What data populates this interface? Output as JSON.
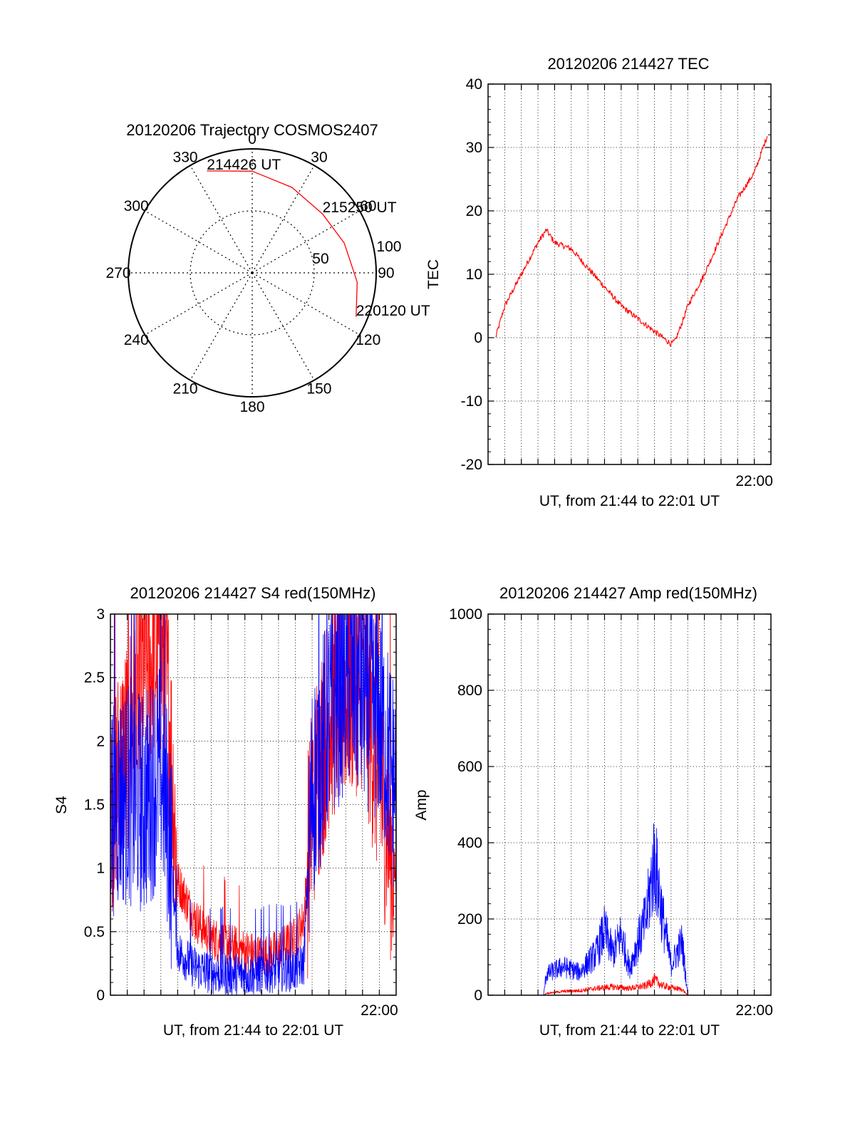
{
  "chart_data": [
    {
      "type": "polar",
      "title": "20120206 Trajectory COSMOS2407",
      "angle_labels": [
        "0",
        "30",
        "60",
        "90",
        "120",
        "150",
        "180",
        "210",
        "240",
        "270",
        "300",
        "330"
      ],
      "angle_values": [
        0,
        30,
        60,
        90,
        120,
        150,
        180,
        210,
        240,
        270,
        300,
        330
      ],
      "radius_labels": [
        "50",
        "100"
      ],
      "radius_values": [
        50,
        100
      ],
      "trajectory": {
        "color": "#ff0000",
        "points": [
          {
            "azimuth": 336,
            "radius": 90
          },
          {
            "azimuth": 0,
            "radius": 82
          },
          {
            "azimuth": 25,
            "radius": 76
          },
          {
            "azimuth": 50,
            "radius": 74
          },
          {
            "azimuth": 72,
            "radius": 78
          },
          {
            "azimuth": 95,
            "radius": 85
          },
          {
            "azimuth": 113,
            "radius": 91
          }
        ]
      },
      "annotations": [
        {
          "text": "214426 UT",
          "azimuth": 336,
          "radius": 90
        },
        {
          "text": "215250 UT",
          "azimuth": 50,
          "radius": 74
        },
        {
          "text": "220120 UT",
          "azimuth": 113,
          "radius": 91
        }
      ]
    },
    {
      "type": "line",
      "title": "20120206 214427 TEC",
      "ylabel": "TEC",
      "xlabel": "UT, from 21:44 to 22:01 UT",
      "xlim": [
        "21:44:00",
        "22:01:00"
      ],
      "ylim": [
        -20,
        40
      ],
      "yticks": [
        -20,
        -10,
        0,
        10,
        20,
        30,
        40
      ],
      "yticklabels": [
        "-20",
        "-10",
        "0",
        "10",
        "20",
        "30",
        "40"
      ],
      "xticklabels": [
        {
          "time": "22:00:00",
          "label": "22:00"
        }
      ],
      "grid": true,
      "series": [
        {
          "color": "#ff0000",
          "x": [
            "21:44:27",
            "21:45:00",
            "21:46:00",
            "21:47:00",
            "21:47:30",
            "21:48:00",
            "21:49:00",
            "21:50:00",
            "21:51:00",
            "21:52:00",
            "21:53:00",
            "21:54:00",
            "21:54:45",
            "21:55:00",
            "21:55:15",
            "21:55:45",
            "21:56:00",
            "21:57:00",
            "21:58:00",
            "21:59:00",
            "22:00:00",
            "22:00:48"
          ],
          "y": [
            0,
            5,
            10,
            15,
            17,
            15,
            14,
            11,
            8,
            5,
            3,
            1,
            -0.5,
            -1,
            -0.5,
            3,
            5,
            10,
            16,
            22,
            26,
            32
          ]
        }
      ]
    },
    {
      "type": "line",
      "title": "20120206 214427 S4 red(150MHz)",
      "ylabel": "S4",
      "xlabel": "UT, from 21:44 to 22:01 UT",
      "xlim": [
        "21:44:00",
        "22:01:00"
      ],
      "ylim": [
        0,
        3
      ],
      "yticks": [
        0,
        0.5,
        1,
        1.5,
        2,
        2.5,
        3
      ],
      "yticklabels": [
        "0",
        "0.5",
        "1",
        "1.5",
        "2",
        "2.5",
        "3"
      ],
      "xticklabels": [
        {
          "time": "22:00:00",
          "label": "22:00"
        }
      ],
      "grid": true,
      "series": [
        {
          "color": "#ff0000",
          "x": [
            "21:44:00",
            "21:45:00",
            "21:46:00",
            "21:47:00",
            "21:47:30",
            "21:48:00",
            "21:49:00",
            "21:50:00",
            "21:51:00",
            "21:52:00",
            "21:53:00",
            "21:54:00",
            "21:55:00",
            "21:55:30",
            "21:56:00",
            "21:57:00",
            "21:58:00",
            "21:59:00",
            "22:00:00",
            "22:01:00"
          ],
          "y": [
            1.5,
            2.0,
            2.6,
            2.7,
            2.2,
            0.9,
            0.6,
            0.45,
            0.4,
            0.35,
            0.3,
            0.35,
            0.45,
            0.6,
            1.5,
            2.2,
            2.4,
            2.5,
            1.7,
            0.9
          ]
        },
        {
          "color": "#0000ff",
          "x": [
            "21:44:00",
            "21:45:00",
            "21:46:00",
            "21:47:00",
            "21:47:30",
            "21:48:00",
            "21:49:00",
            "21:50:00",
            "21:51:00",
            "21:52:00",
            "21:53:00",
            "21:54:00",
            "21:55:00",
            "21:55:30",
            "21:56:00",
            "21:57:00",
            "21:58:00",
            "21:59:00",
            "22:00:00",
            "22:01:00"
          ],
          "y": [
            1.5,
            1.6,
            1.5,
            1.8,
            1.3,
            0.35,
            0.22,
            0.18,
            0.17,
            0.16,
            0.18,
            0.2,
            0.2,
            0.25,
            1.6,
            2.2,
            2.5,
            2.4,
            2.2,
            1.6
          ]
        }
      ]
    },
    {
      "type": "line",
      "title": "20120206 214427 Amp red(150MHz)",
      "ylabel": "Amp",
      "xlabel": "UT, from 21:44 to 22:01 UT",
      "xlim": [
        "21:44:00",
        "22:01:00"
      ],
      "ylim": [
        0,
        1000
      ],
      "yticks": [
        0,
        200,
        400,
        600,
        800,
        1000
      ],
      "yticklabels": [
        "0",
        "200",
        "400",
        "600",
        "800",
        "1000"
      ],
      "xticklabels": [
        {
          "time": "22:00:00",
          "label": "22:00"
        }
      ],
      "grid": true,
      "series": [
        {
          "color": "#0000ff",
          "x": [
            "21:44:00",
            "21:47:20",
            "21:47:30",
            "21:48:30",
            "21:49:30",
            "21:50:30",
            "21:51:00",
            "21:51:30",
            "21:52:00",
            "21:52:30",
            "21:53:00",
            "21:53:30",
            "21:54:00",
            "21:54:30",
            "21:55:00",
            "21:55:40",
            "21:56:00",
            "21:57:00",
            "22:01:00"
          ],
          "y": [
            0,
            0,
            55,
            75,
            60,
            110,
            170,
            110,
            160,
            70,
            140,
            200,
            360,
            200,
            80,
            140,
            0,
            0,
            0
          ]
        },
        {
          "color": "#ff0000",
          "x": [
            "21:44:00",
            "21:47:20",
            "21:47:30",
            "21:48:30",
            "21:49:30",
            "21:50:30",
            "21:51:30",
            "21:52:30",
            "21:53:30",
            "21:54:00",
            "21:54:30",
            "21:55:00",
            "21:55:40",
            "21:56:00",
            "22:01:00"
          ],
          "y": [
            0,
            0,
            5,
            10,
            12,
            18,
            22,
            18,
            25,
            40,
            25,
            20,
            15,
            0,
            0
          ]
        }
      ]
    }
  ]
}
